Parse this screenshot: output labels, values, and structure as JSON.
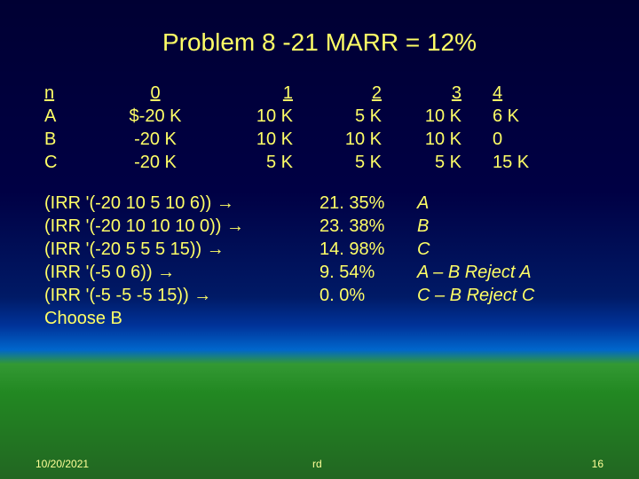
{
  "title": "Problem 8 -21 MARR = 12%",
  "table": {
    "headers": [
      "n",
      "0",
      "1",
      "2",
      "3",
      "4"
    ],
    "rows": [
      [
        "A",
        "$-20 K",
        "10 K",
        "5 K",
        "10 K",
        "6 K"
      ],
      [
        "B",
        "-20 K",
        "10 K",
        "10 K",
        "10 K",
        "0"
      ],
      [
        "C",
        "-20 K",
        "5 K",
        "5 K",
        "5 K",
        "15 K"
      ]
    ]
  },
  "irr": [
    {
      "expr": "(IRR '(-20 10 5 10 6))",
      "pct": "21. 35%",
      "lbl": "A"
    },
    {
      "expr": "(IRR '(-20 10 10 10 0))",
      "pct": "23. 38%",
      "lbl": "B"
    },
    {
      "expr": "(IRR '(-20 5 5 5 15))",
      "pct": "14. 98%",
      "lbl": "C"
    },
    {
      "expr": "(IRR '(-5 0 6))",
      "pct": "9. 54%",
      "lbl": "A – B  Reject A"
    },
    {
      "expr": "(IRR '(-5 -5 -5 15))",
      "pct": "0. 0%",
      "lbl": "C – B  Reject C"
    }
  ],
  "choose": "Choose B",
  "footer": {
    "date": "10/20/2021",
    "rd": "rd",
    "page": "16"
  },
  "colors": {
    "text": "#ffff66",
    "bg_top": "#000033",
    "bg_mid": "#003399",
    "bg_bottom": "#226622"
  }
}
